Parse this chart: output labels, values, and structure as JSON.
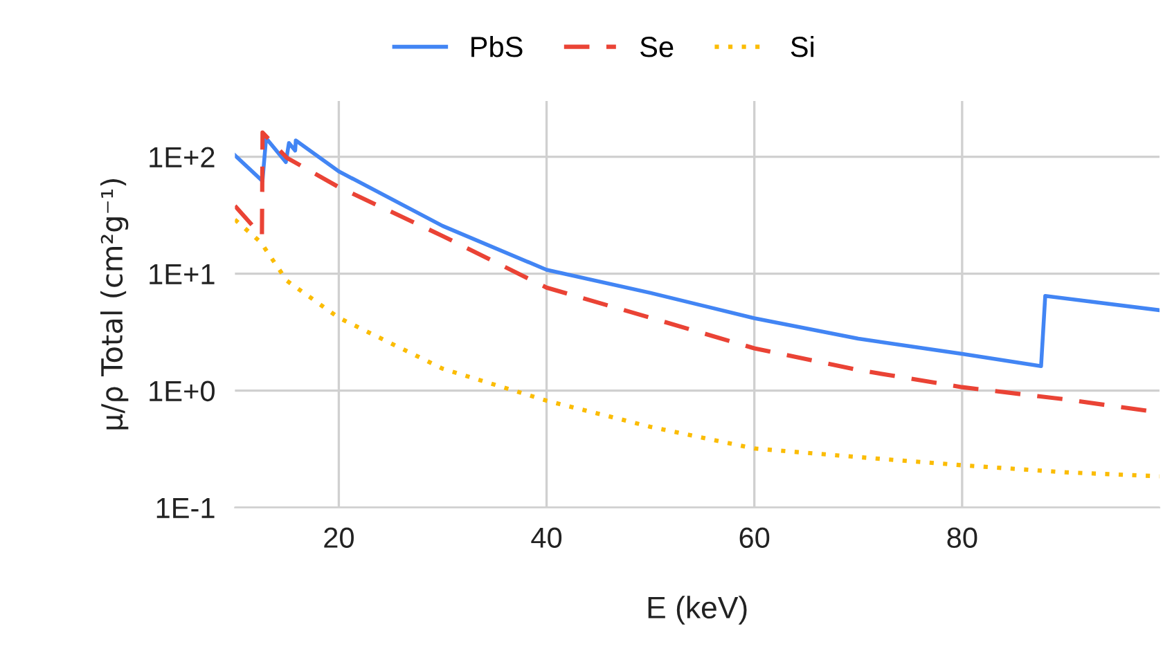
{
  "chart_data": {
    "type": "line",
    "xlabel": "E (keV)",
    "ylabel": "μ/ρ Total (cm²g⁻¹)",
    "log": "y",
    "grid": true,
    "legend": "top",
    "xlim": [
      10,
      99
    ],
    "xticks": [
      20,
      40,
      60,
      80
    ],
    "ylim": [
      0.1,
      300
    ],
    "yticks": [
      {
        "value": 0.1,
        "label": "1E-1"
      },
      {
        "value": 1,
        "label": "1E+0"
      },
      {
        "value": 10,
        "label": "1E+1"
      },
      {
        "value": 100,
        "label": "1E+2"
      }
    ],
    "series": [
      {
        "name": "PbS",
        "color": "#4285f4",
        "line_style": "solid",
        "x": [
          10,
          12.65,
          13.0,
          14.9,
          15.2,
          15.8,
          15.86,
          20,
          30,
          40,
          50,
          60,
          70,
          80,
          87.6,
          88.0,
          99
        ],
        "values": [
          103,
          62,
          144,
          90,
          131,
          113,
          138,
          75,
          25.6,
          10.8,
          6.85,
          4.16,
          2.78,
          2.06,
          1.62,
          6.45,
          4.87
        ]
      },
      {
        "name": "Se",
        "color": "#ea4335",
        "line_style": "dashed",
        "x": [
          10,
          12.6,
          12.66,
          15,
          20,
          30,
          40,
          50,
          60,
          70,
          80,
          90,
          99
        ],
        "values": [
          38,
          21,
          161,
          98,
          55,
          21,
          7.6,
          4.2,
          2.3,
          1.5,
          1.07,
          0.84,
          0.65
        ]
      },
      {
        "name": "Si",
        "color": "#fbbc04",
        "line_style": "dotted",
        "x": [
          10,
          12.5,
          15,
          20,
          30,
          40,
          50,
          60,
          70,
          80,
          90,
          99
        ],
        "values": [
          29,
          18.5,
          8.7,
          4.2,
          1.54,
          0.82,
          0.49,
          0.32,
          0.27,
          0.23,
          0.2,
          0.185
        ]
      }
    ]
  }
}
